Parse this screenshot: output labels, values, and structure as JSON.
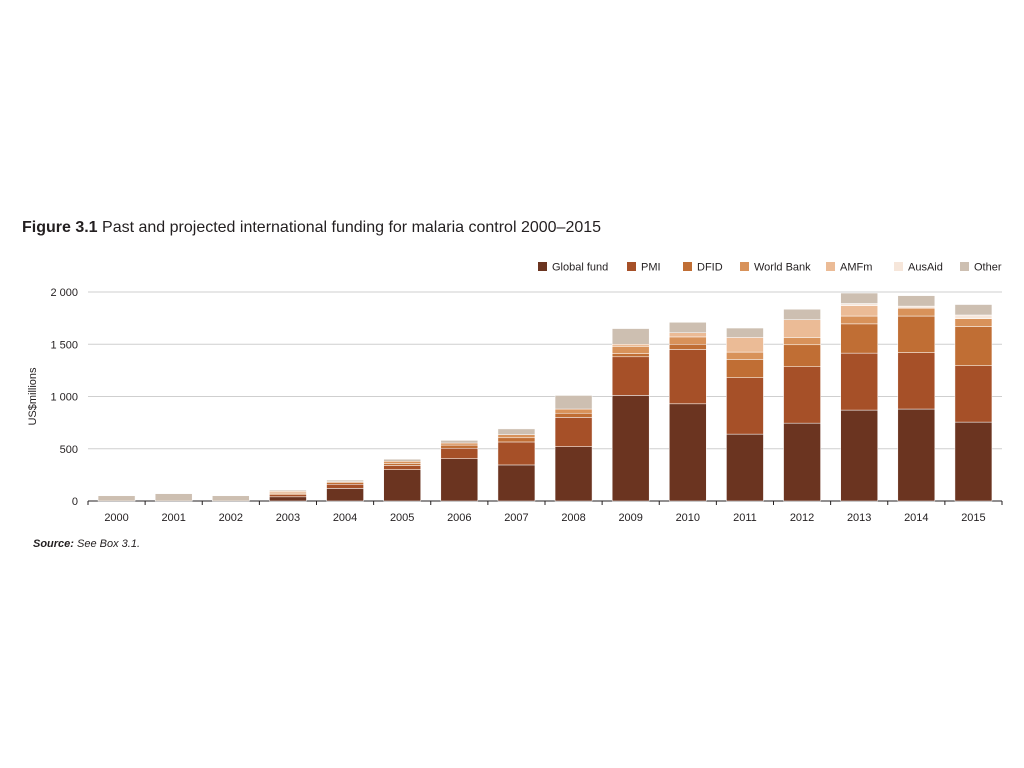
{
  "figure": {
    "number": "Figure 3.1",
    "caption": "Past and projected international funding for malaria control 2000–2015"
  },
  "source": {
    "label": "Source:",
    "text": "See Box 3.1."
  },
  "chart_data": {
    "type": "bar",
    "stacked": true,
    "title": "Past and projected international funding for malaria control 2000–2015",
    "xlabel": "",
    "ylabel": "US$millions",
    "ylim": [
      0,
      2000
    ],
    "yticks": [
      0,
      500,
      1000,
      1500,
      2000
    ],
    "ytick_labels": [
      "0",
      "500",
      "1 000",
      "1 500",
      "2 000"
    ],
    "grid": true,
    "legend_position": "top-right",
    "categories": [
      "2000",
      "2001",
      "2002",
      "2003",
      "2004",
      "2005",
      "2006",
      "2007",
      "2008",
      "2009",
      "2010",
      "2011",
      "2012",
      "2013",
      "2014",
      "2015"
    ],
    "series": [
      {
        "name": "Global fund",
        "color": "#6b3420",
        "values": [
          0,
          0,
          0,
          40,
          120,
          300,
          405,
          345,
          520,
          1010,
          930,
          640,
          745,
          870,
          880,
          755
        ]
      },
      {
        "name": "PMI",
        "color": "#a65028",
        "values": [
          0,
          0,
          0,
          20,
          40,
          40,
          100,
          220,
          280,
          370,
          520,
          540,
          540,
          545,
          540,
          540
        ]
      },
      {
        "name": "DFID",
        "color": "#c06e34",
        "values": [
          0,
          0,
          0,
          10,
          15,
          20,
          30,
          40,
          40,
          30,
          50,
          175,
          210,
          280,
          350,
          375
        ]
      },
      {
        "name": "World Bank",
        "color": "#d8925a",
        "values": [
          0,
          0,
          0,
          15,
          10,
          20,
          20,
          30,
          40,
          70,
          70,
          70,
          70,
          75,
          75,
          75
        ]
      },
      {
        "name": "AMFm",
        "color": "#ebbb96",
        "values": [
          0,
          0,
          0,
          10,
          0,
          0,
          0,
          0,
          0,
          20,
          40,
          140,
          170,
          100,
          0,
          0
        ]
      },
      {
        "name": "AusAid",
        "color": "#f6e6da",
        "values": [
          0,
          0,
          0,
          0,
          0,
          0,
          0,
          0,
          0,
          0,
          0,
          0,
          0,
          20,
          20,
          35
        ]
      },
      {
        "name": "Other",
        "color": "#cdbfb1",
        "values": [
          50,
          70,
          50,
          10,
          15,
          20,
          25,
          55,
          130,
          150,
          100,
          90,
          100,
          100,
          100,
          100
        ]
      }
    ]
  }
}
